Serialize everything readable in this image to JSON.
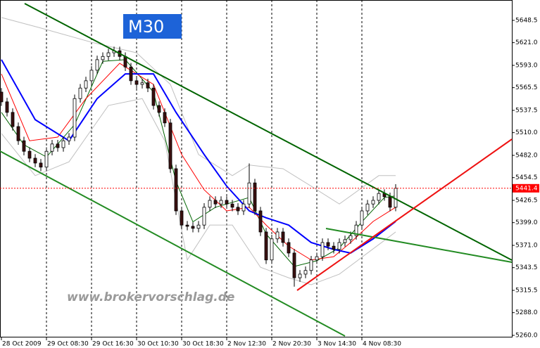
{
  "chart_data": {
    "type": "candlestick",
    "timeframe": "M30",
    "watermark": "www.brokervorschlag.de",
    "categories": [
      "28 Oct 2009",
      null,
      null,
      null,
      null,
      null,
      null,
      null,
      "29 Oct 08:30",
      null,
      null,
      null,
      null,
      null,
      null,
      null,
      "29 Oct 16:30",
      null,
      null,
      null,
      null,
      null,
      null,
      null,
      "30 Oct 10:30",
      null,
      null,
      null,
      null,
      null,
      null,
      null,
      "30 Oct 18:30",
      null,
      null,
      null,
      null,
      null,
      null,
      null,
      "2 Nov 12:30",
      null,
      null,
      null,
      null,
      null,
      null,
      null,
      "2 Nov 20:30",
      null,
      null,
      null,
      null,
      null,
      null,
      null,
      "3 Nov 14:30",
      null,
      null,
      null,
      null,
      null,
      null,
      null,
      "4 Nov 08:30",
      null,
      null,
      null,
      null,
      null,
      null
    ],
    "open": [
      5560,
      5548,
      5535,
      5517.5,
      5500,
      5487,
      5478.5,
      5472.5,
      5467.5,
      5487,
      5496,
      5491.5,
      5500,
      5504.5,
      5552,
      5565,
      5574,
      5587,
      5600,
      5604,
      5608.5,
      5611,
      5604,
      5591,
      5574,
      5569.5,
      5571.5,
      5565,
      5543.5,
      5535,
      5522,
      5465.5,
      5413.5,
      5396,
      5394.5,
      5392,
      5396,
      5418,
      5426.5,
      5422,
      5426.5,
      5422,
      5418,
      5413.5,
      5422,
      5448,
      5413.5,
      5387.5,
      5353,
      5379,
      5387.5,
      5374.5,
      5361.5,
      5331,
      5335.5,
      5340,
      5353,
      5357,
      5374.5,
      5370,
      5366,
      5374.5,
      5378,
      5383,
      5396,
      5413.5,
      5422,
      5426.5,
      5435,
      5431,
      5418
    ],
    "high": [
      5565,
      5553,
      5540,
      5522.5,
      5505,
      5492,
      5483.5,
      5477.5,
      5492,
      5501,
      5501,
      5505,
      5509.5,
      5557,
      5570,
      5579,
      5592,
      5605,
      5609,
      5613.5,
      5616,
      5616,
      5609,
      5596,
      5579,
      5576.5,
      5576.5,
      5570,
      5548.5,
      5540,
      5527,
      5470.5,
      5418.5,
      5401,
      5399.5,
      5401,
      5423,
      5431.5,
      5431.5,
      5431.5,
      5431.5,
      5427,
      5423,
      5427,
      5472,
      5453,
      5418.5,
      5392.5,
      5384,
      5392.5,
      5392.5,
      5379.5,
      5366.5,
      5340.5,
      5345,
      5358,
      5362,
      5379.5,
      5379.5,
      5375,
      5379.5,
      5383,
      5388,
      5401,
      5418.5,
      5427,
      5431.5,
      5440,
      5440,
      5436,
      5446.4
    ],
    "low": [
      5543,
      5530,
      5512.5,
      5495,
      5482,
      5473.5,
      5467.5,
      5462.5,
      5462.5,
      5482,
      5486.5,
      5486.5,
      5495,
      5499.5,
      5547,
      5560,
      5569,
      5582,
      5595,
      5599,
      5603.5,
      5599,
      5586,
      5569,
      5564.5,
      5564.5,
      5560,
      5538.5,
      5530,
      5517,
      5460.5,
      5408.5,
      5391,
      5389.5,
      5387,
      5387,
      5391,
      5413,
      5417,
      5417,
      5417,
      5413,
      5408.5,
      5408.5,
      5417,
      5408.5,
      5382.5,
      5348,
      5348,
      5374,
      5369.5,
      5356.5,
      5320,
      5326,
      5330.5,
      5335,
      5348,
      5352,
      5365,
      5361,
      5361,
      5369.5,
      5373,
      5378,
      5391,
      5408.5,
      5417,
      5421.5,
      5426,
      5413,
      5413
    ],
    "close": [
      5548,
      5535,
      5517.5,
      5500,
      5487,
      5478.5,
      5472.5,
      5467.5,
      5487,
      5496,
      5491.5,
      5500,
      5504.5,
      5552,
      5565,
      5574,
      5587,
      5600,
      5604,
      5608.5,
      5611,
      5604,
      5591,
      5574,
      5569.5,
      5571.5,
      5565,
      5543.5,
      5535,
      5522,
      5465.5,
      5413.5,
      5396,
      5394.5,
      5392,
      5396,
      5418,
      5426.5,
      5422,
      5426.5,
      5422,
      5418,
      5413.5,
      5422,
      5448,
      5413.5,
      5387.5,
      5353,
      5379,
      5387.5,
      5374.5,
      5361.5,
      5331,
      5335.5,
      5340,
      5353,
      5357,
      5374.5,
      5370,
      5366,
      5374.5,
      5378,
      5383,
      5396,
      5413.5,
      5422,
      5426.5,
      5435,
      5431,
      5418,
      5441.4
    ],
    "up_color": "#ffffff",
    "down_color": "#3b1010",
    "indicators": [
      {
        "color": "#c0c0c0",
        "x": [
          0,
          7,
          16,
          24,
          30,
          35,
          41,
          44,
          50,
          55,
          60,
          67,
          70
        ],
        "values": [
          5652,
          5639,
          5621.5,
          5608.5,
          5569.5,
          5483,
          5457,
          5470,
          5465.5,
          5444,
          5422,
          5457,
          5457
        ]
      },
      {
        "color": "#c0c0c0",
        "x": [
          0,
          6,
          12,
          19,
          25,
          29,
          33,
          37,
          41,
          46,
          51,
          55,
          60,
          65,
          70
        ],
        "values": [
          5509,
          5457,
          5474,
          5543.5,
          5552,
          5500,
          5353,
          5396,
          5396,
          5344,
          5331,
          5322.5,
          5335.5,
          5361.5,
          5387.5
        ]
      },
      {
        "color": "#006400",
        "x": [
          0,
          4,
          8,
          13,
          18,
          22,
          27,
          31,
          34,
          38,
          44,
          47,
          52,
          56,
          60,
          64,
          68,
          70
        ],
        "values": [
          5535,
          5495,
          5480,
          5520,
          5598,
          5600,
          5560,
          5450,
          5400,
          5418,
          5430,
          5385,
          5345,
          5352,
          5368,
          5400,
          5430,
          5432
        ]
      },
      {
        "color": "#ff0000",
        "x": [
          0,
          5,
          10,
          15,
          21,
          27,
          32,
          36,
          40,
          44,
          47,
          51,
          55,
          59,
          62,
          66,
          70
        ],
        "values": [
          5582.5,
          5500,
          5504.5,
          5552,
          5595.5,
          5569.5,
          5483,
          5439.5,
          5413.5,
          5418,
          5396,
          5370,
          5353,
          5357,
          5374.5,
          5400.5,
          5418
        ]
      },
      {
        "color": "#0000ff",
        "x": [
          0,
          6,
          12,
          17,
          22,
          27,
          31,
          36,
          40,
          44,
          47,
          51,
          55,
          59,
          62,
          66,
          70
        ],
        "values": [
          5600,
          5526,
          5500,
          5552,
          5582.5,
          5582.5,
          5535,
          5483,
          5444,
          5413.5,
          5405,
          5396,
          5374.5,
          5366,
          5361.5,
          5379,
          5400.5
        ]
      }
    ],
    "ylim": [
      5257.4,
      5673.6
    ],
    "yticks": [
      5648.5,
      {
        "value": 5621,
        "label": "5621.0"
      },
      {
        "value": 5593,
        "label": "5593.0"
      },
      5565.5,
      5537.5,
      {
        "value": 5510,
        "label": "5510.0"
      },
      {
        "value": 5482,
        "label": "5482.0"
      },
      5454.5,
      5426.5,
      {
        "value": 5399,
        "label": "5399.0"
      },
      {
        "value": 5371,
        "label": "5371.0"
      },
      5343.5,
      5315.5,
      {
        "value": 5288,
        "label": "5288.0"
      },
      {
        "value": 5260,
        "label": "5260.0"
      }
    ],
    "last_price": 5441.4,
    "last_price_color": "#ff0000",
    "grid": true
  }
}
